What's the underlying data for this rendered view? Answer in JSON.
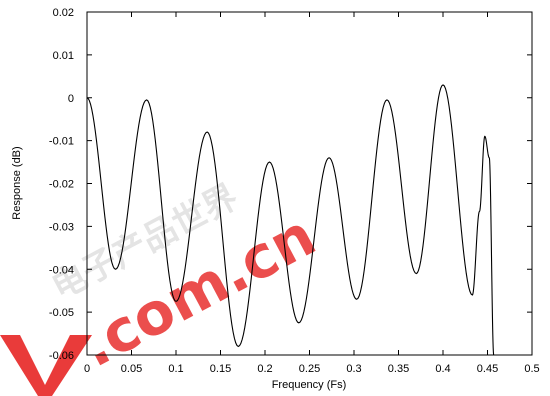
{
  "chart_data": {
    "type": "line",
    "title": "",
    "xlabel": "Frequency (Fs)",
    "ylabel": "Response (dB)",
    "xlim": [
      0,
      0.5
    ],
    "ylim": [
      -0.06,
      0.02
    ],
    "x_ticks": [
      "0",
      "0.05",
      "0.1",
      "0.15",
      "0.2",
      "0.25",
      "0.3",
      "0.35",
      "0.4",
      "0.45",
      "0.5"
    ],
    "y_ticks": [
      "0.02",
      "0.01",
      "0",
      "-0.01",
      "-0.02",
      "-0.03",
      "-0.04",
      "-0.05",
      "-0.06"
    ],
    "grid": false,
    "line_color": "#000000",
    "series": [
      {
        "extrema": [
          [
            0.0,
            0.0
          ],
          [
            0.032,
            -0.04
          ],
          [
            0.067,
            -0.0005
          ],
          [
            0.1,
            -0.0475
          ],
          [
            0.135,
            -0.008
          ],
          [
            0.17,
            -0.058
          ],
          [
            0.205,
            -0.015
          ],
          [
            0.238,
            -0.0525
          ],
          [
            0.272,
            -0.014
          ],
          [
            0.303,
            -0.047
          ],
          [
            0.337,
            -0.0005
          ],
          [
            0.37,
            -0.041
          ],
          [
            0.4,
            0.003
          ],
          [
            0.433,
            -0.046
          ],
          [
            0.441,
            -0.0265
          ],
          [
            0.447,
            -0.009
          ],
          [
            0.452,
            -0.014
          ],
          [
            0.457,
            -0.06
          ]
        ]
      }
    ]
  },
  "watermark": {
    "text": ".com.cn",
    "glyphs": "电子产品世界",
    "color": "#e8302f"
  }
}
